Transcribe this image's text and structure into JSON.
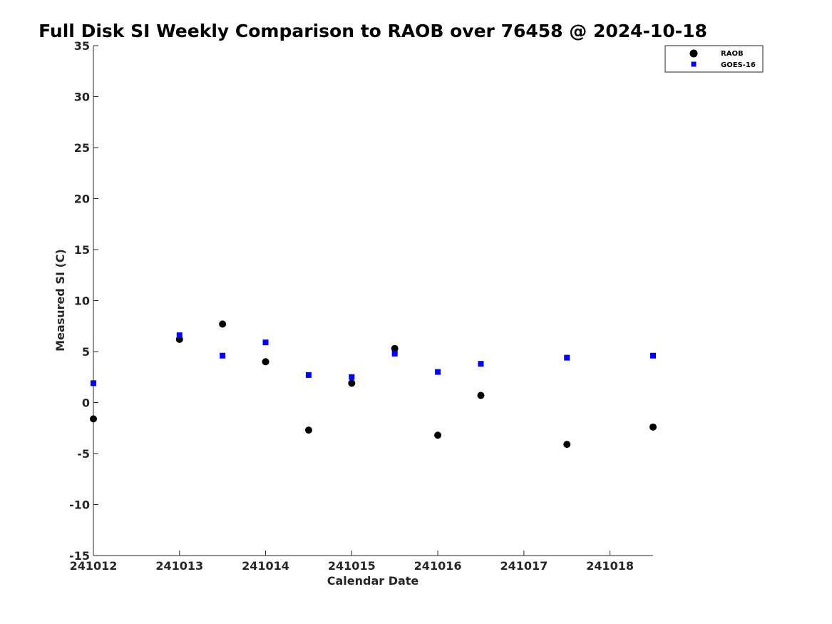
{
  "chart_data": {
    "type": "scatter",
    "title": "Full Disk SI Weekly Comparison to RAOB over 76458 @ 2024-10-18",
    "xlabel": "Calendar Date",
    "ylabel": "Measured SI (C)",
    "xlim": [
      "2024-10-12",
      "2024-10-18 12:00"
    ],
    "ylim": [
      -15,
      35
    ],
    "x_ticks": [
      "241012",
      "241013",
      "241014",
      "241015",
      "241016",
      "241017",
      "241018"
    ],
    "y_ticks": [
      -15,
      -10,
      -5,
      0,
      5,
      10,
      15,
      20,
      25,
      30,
      35
    ],
    "grid": false,
    "legend_position": "top-right",
    "series": [
      {
        "name": "RAOB",
        "marker": "circle",
        "color": "#000000",
        "x": [
          "2024-10-12 00:00",
          "2024-10-13 00:00",
          "2024-10-13 12:00",
          "2024-10-14 00:00",
          "2024-10-14 12:00",
          "2024-10-15 00:00",
          "2024-10-15 12:00",
          "2024-10-16 00:00",
          "2024-10-16 12:00",
          "2024-10-17 12:00",
          "2024-10-18 12:00"
        ],
        "y": [
          -1.6,
          6.2,
          7.7,
          4.0,
          -2.7,
          1.9,
          5.3,
          -3.2,
          0.7,
          -4.1,
          -2.4
        ]
      },
      {
        "name": "GOES-16",
        "marker": "square",
        "color": "#0000ff",
        "x": [
          "2024-10-12 00:00",
          "2024-10-13 00:00",
          "2024-10-13 12:00",
          "2024-10-14 00:00",
          "2024-10-14 12:00",
          "2024-10-15 00:00",
          "2024-10-15 12:00",
          "2024-10-16 00:00",
          "2024-10-16 12:00",
          "2024-10-17 12:00",
          "2024-10-18 12:00"
        ],
        "y": [
          1.9,
          6.6,
          4.6,
          5.9,
          2.7,
          2.5,
          4.8,
          3.0,
          3.8,
          4.4,
          4.6
        ]
      }
    ]
  }
}
